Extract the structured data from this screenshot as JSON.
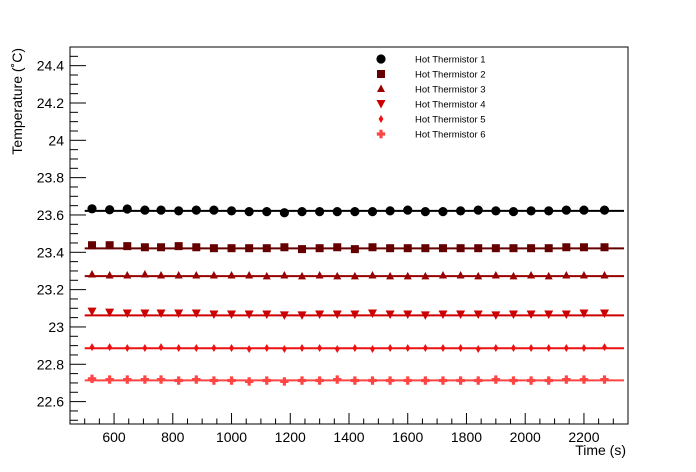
{
  "chart_data": {
    "type": "scatter",
    "title": "",
    "xlabel": "Time (s)",
    "ylabel": "Temperature (˚C)",
    "xlim": [
      450,
      2350
    ],
    "ylim": [
      22.48,
      24.5
    ],
    "x_ticks": [
      "600",
      "800",
      "1000",
      "1200",
      "1400",
      "1600",
      "1800",
      "2000",
      "2200"
    ],
    "y_ticks": [
      "22.6",
      "22.8",
      "23",
      "23.2",
      "23.4",
      "23.6",
      "23.8",
      "24",
      "24.2",
      "24.4"
    ],
    "legend_position": "top-right",
    "grid": false,
    "x": [
      525,
      585,
      645,
      705,
      760,
      820,
      880,
      940,
      1000,
      1060,
      1120,
      1180,
      1240,
      1300,
      1360,
      1420,
      1480,
      1540,
      1600,
      1660,
      1720,
      1780,
      1840,
      1900,
      1960,
      2020,
      2080,
      2140,
      2200,
      2270
    ],
    "series": [
      {
        "name": "Hot Thermistor 1",
        "marker": "circle",
        "color": "#000000",
        "fit": 23.622,
        "values": [
          23.633,
          23.628,
          23.632,
          23.626,
          23.626,
          23.622,
          23.626,
          23.626,
          23.622,
          23.618,
          23.618,
          23.612,
          23.618,
          23.618,
          23.618,
          23.618,
          23.618,
          23.622,
          23.626,
          23.618,
          23.618,
          23.622,
          23.626,
          23.622,
          23.618,
          23.622,
          23.622,
          23.626,
          23.626,
          23.626
        ]
      },
      {
        "name": "Hot Thermistor 2",
        "marker": "square",
        "color": "#660000",
        "fit": 23.421,
        "values": [
          23.438,
          23.438,
          23.433,
          23.427,
          23.427,
          23.433,
          23.427,
          23.422,
          23.422,
          23.422,
          23.422,
          23.427,
          23.417,
          23.422,
          23.427,
          23.417,
          23.427,
          23.422,
          23.422,
          23.422,
          23.422,
          23.422,
          23.422,
          23.422,
          23.422,
          23.422,
          23.422,
          23.427,
          23.427,
          23.427
        ]
      },
      {
        "name": "Hot Thermistor 3",
        "marker": "triangle-up",
        "color": "#990000",
        "fit": 23.272,
        "values": [
          23.281,
          23.276,
          23.276,
          23.281,
          23.276,
          23.276,
          23.276,
          23.276,
          23.276,
          23.276,
          23.271,
          23.276,
          23.271,
          23.276,
          23.271,
          23.271,
          23.276,
          23.271,
          23.271,
          23.271,
          23.276,
          23.276,
          23.271,
          23.276,
          23.271,
          23.276,
          23.271,
          23.276,
          23.276,
          23.276
        ]
      },
      {
        "name": "Hot Thermistor 4",
        "marker": "triangle-down",
        "color": "#cc0000",
        "fit": 23.062,
        "values": [
          23.082,
          23.077,
          23.072,
          23.072,
          23.072,
          23.072,
          23.072,
          23.067,
          23.067,
          23.067,
          23.067,
          23.062,
          23.062,
          23.067,
          23.067,
          23.067,
          23.072,
          23.067,
          23.067,
          23.062,
          23.067,
          23.067,
          23.067,
          23.062,
          23.067,
          23.067,
          23.067,
          23.067,
          23.072,
          23.072
        ]
      },
      {
        "name": "Hot Thermistor 5",
        "marker": "diamond",
        "color": "#ee1111",
        "fit": 22.886,
        "values": [
          22.892,
          22.892,
          22.887,
          22.887,
          22.892,
          22.887,
          22.887,
          22.887,
          22.887,
          22.882,
          22.887,
          22.882,
          22.887,
          22.887,
          22.882,
          22.887,
          22.882,
          22.887,
          22.887,
          22.887,
          22.887,
          22.887,
          22.882,
          22.887,
          22.887,
          22.887,
          22.887,
          22.887,
          22.887,
          22.892
        ]
      },
      {
        "name": "Hot Thermistor 6",
        "marker": "cross",
        "color": "#ff4444",
        "fit": 22.714,
        "values": [
          22.722,
          22.718,
          22.718,
          22.718,
          22.718,
          22.713,
          22.718,
          22.713,
          22.713,
          22.708,
          22.713,
          22.708,
          22.713,
          22.713,
          22.718,
          22.713,
          22.713,
          22.713,
          22.713,
          22.713,
          22.713,
          22.713,
          22.713,
          22.718,
          22.713,
          22.713,
          22.713,
          22.718,
          22.718,
          22.718
        ]
      }
    ]
  }
}
